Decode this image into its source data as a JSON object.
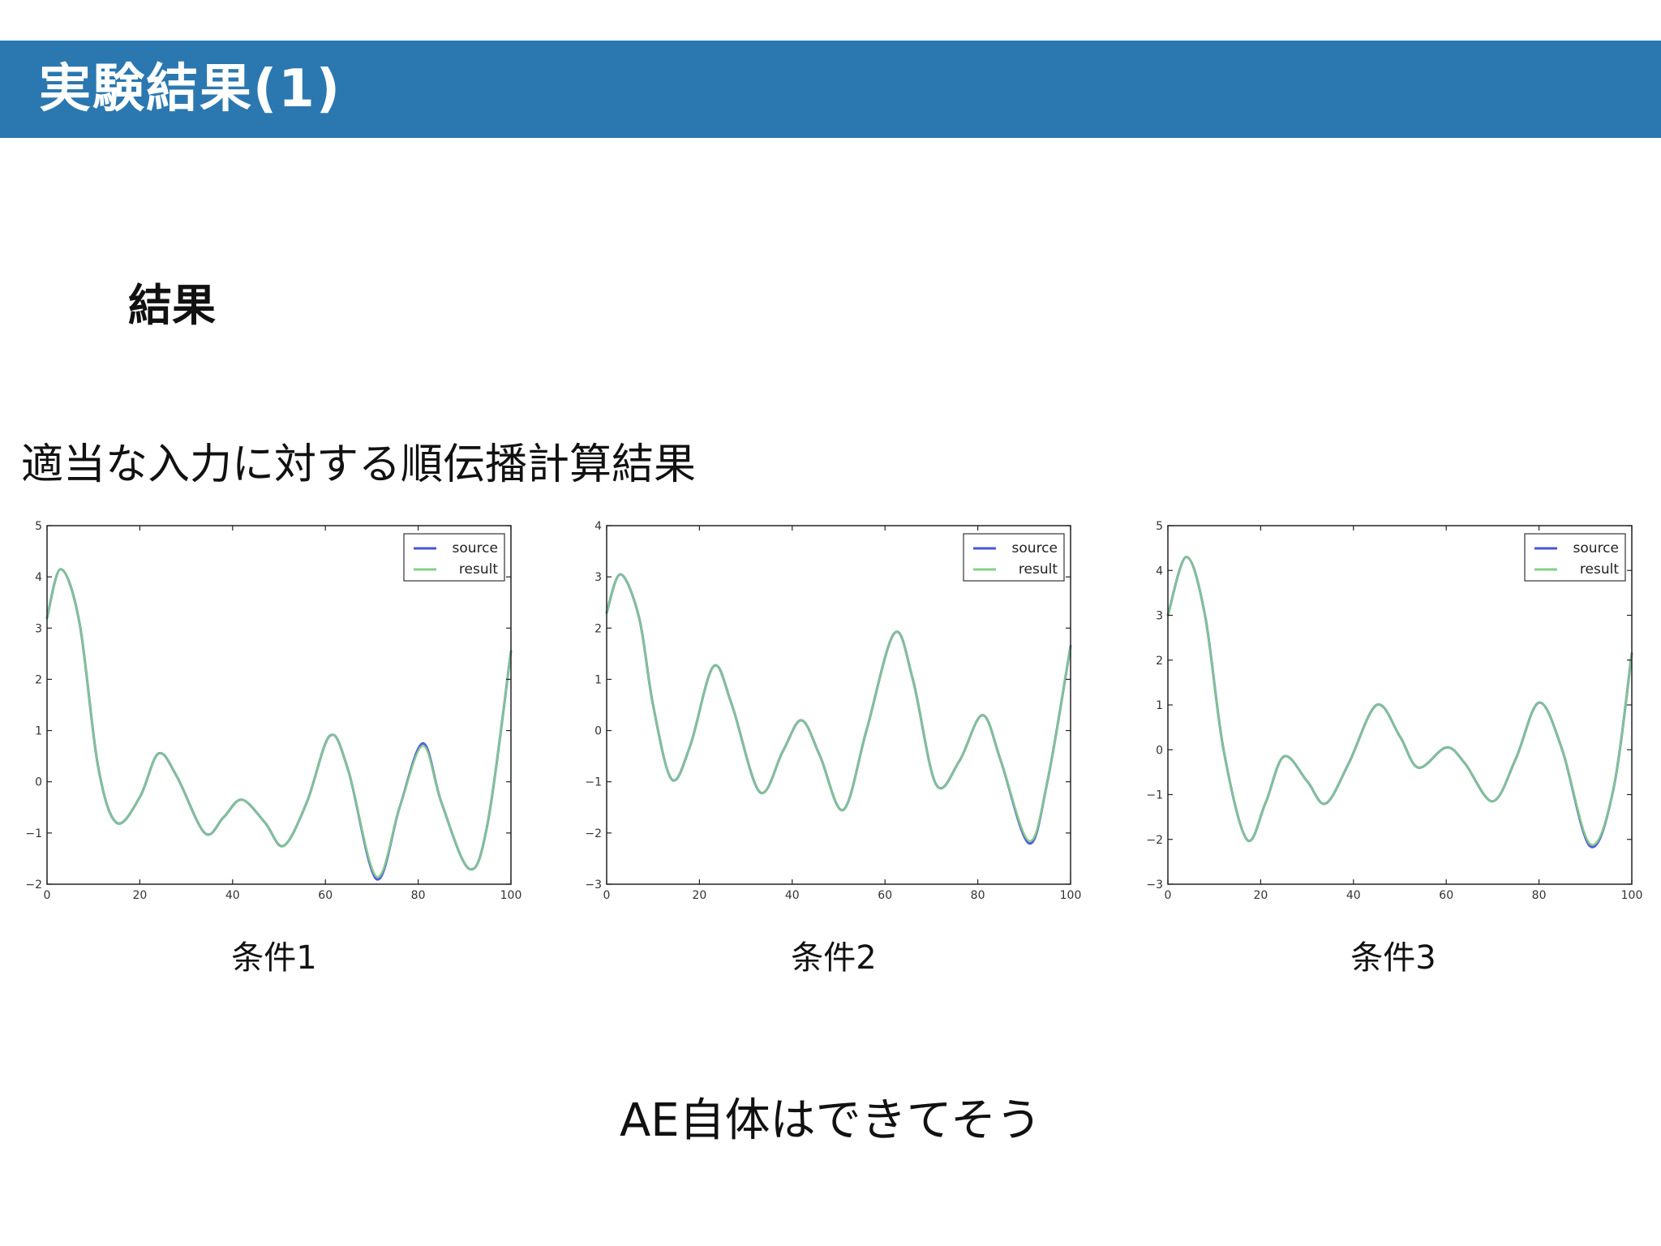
{
  "header": {
    "title": "実験結果(1)",
    "color": "#2b78b0"
  },
  "section_title": "結果",
  "description": "適当な入力に対する順伝播計算結果",
  "conclusion": "AE自体はできてそう",
  "colors": {
    "source": "#4a55d8",
    "result": "#86cf86"
  },
  "chart_data": [
    {
      "type": "line",
      "caption": "条件1",
      "xlim": [
        0,
        100
      ],
      "ylim": [
        -2,
        5
      ],
      "xticks": [
        0,
        20,
        40,
        60,
        80,
        100
      ],
      "yticks": [
        -2,
        -1,
        0,
        1,
        2,
        3,
        4,
        5
      ],
      "legend_position": "top-right",
      "x": [
        0,
        3,
        7,
        11,
        15,
        20,
        24,
        28,
        34,
        38,
        42,
        47,
        51,
        56,
        61,
        65,
        71,
        76,
        81,
        85,
        91,
        95,
        100
      ],
      "series": [
        {
          "name": "source",
          "values": [
            3.2,
            4.15,
            3.1,
            0.3,
            -0.8,
            -0.3,
            0.55,
            0.1,
            -1.0,
            -0.7,
            -0.35,
            -0.8,
            -1.25,
            -0.4,
            0.9,
            0.2,
            -1.9,
            -0.5,
            0.75,
            -0.4,
            -1.7,
            -0.8,
            2.55
          ]
        },
        {
          "name": "result",
          "values": [
            3.2,
            4.15,
            3.1,
            0.3,
            -0.8,
            -0.3,
            0.55,
            0.1,
            -1.0,
            -0.7,
            -0.35,
            -0.8,
            -1.25,
            -0.4,
            0.9,
            0.2,
            -1.85,
            -0.5,
            0.7,
            -0.4,
            -1.7,
            -0.8,
            2.55
          ]
        }
      ]
    },
    {
      "type": "line",
      "caption": "条件2",
      "xlim": [
        0,
        100
      ],
      "ylim": [
        -3,
        4
      ],
      "xticks": [
        0,
        20,
        40,
        60,
        80,
        100
      ],
      "yticks": [
        -3,
        -2,
        -1,
        0,
        1,
        2,
        3,
        4
      ],
      "legend_position": "top-right",
      "x": [
        0,
        3,
        7,
        10,
        14,
        18,
        23,
        27,
        33,
        38,
        42,
        46,
        51,
        56,
        62,
        66,
        71,
        76,
        81,
        85,
        91,
        95,
        100
      ],
      "series": [
        {
          "name": "source",
          "values": [
            2.3,
            3.05,
            2.2,
            0.5,
            -0.95,
            -0.3,
            1.25,
            0.5,
            -1.2,
            -0.4,
            0.2,
            -0.5,
            -1.55,
            0.0,
            1.9,
            1.0,
            -1.05,
            -0.6,
            0.3,
            -0.6,
            -2.2,
            -1.0,
            1.65
          ]
        },
        {
          "name": "result",
          "values": [
            2.3,
            3.05,
            2.2,
            0.5,
            -0.95,
            -0.3,
            1.25,
            0.5,
            -1.2,
            -0.4,
            0.2,
            -0.5,
            -1.55,
            0.0,
            1.9,
            1.0,
            -1.05,
            -0.6,
            0.3,
            -0.6,
            -2.15,
            -1.0,
            1.65
          ]
        }
      ]
    },
    {
      "type": "line",
      "caption": "条件3",
      "xlim": [
        0,
        100
      ],
      "ylim": [
        -3,
        5
      ],
      "xticks": [
        0,
        20,
        40,
        60,
        80,
        100
      ],
      "yticks": [
        -3,
        -2,
        -1,
        0,
        1,
        2,
        3,
        4,
        5
      ],
      "legend_position": "top-right",
      "x": [
        0,
        4,
        8,
        12,
        17,
        21,
        25,
        30,
        34,
        39,
        45,
        50,
        54,
        60,
        64,
        70,
        75,
        80,
        85,
        91,
        96,
        100
      ],
      "series": [
        {
          "name": "source",
          "values": [
            3.0,
            4.3,
            3.0,
            0.0,
            -2.0,
            -1.2,
            -0.15,
            -0.7,
            -1.2,
            -0.3,
            1.0,
            0.3,
            -0.4,
            0.05,
            -0.3,
            -1.15,
            -0.2,
            1.05,
            0.0,
            -2.15,
            -0.9,
            2.15
          ]
        },
        {
          "name": "result",
          "values": [
            3.0,
            4.3,
            3.0,
            0.0,
            -2.0,
            -1.2,
            -0.15,
            -0.7,
            -1.2,
            -0.3,
            1.0,
            0.3,
            -0.4,
            0.05,
            -0.3,
            -1.15,
            -0.2,
            1.05,
            0.0,
            -2.1,
            -0.9,
            2.15
          ]
        }
      ]
    }
  ]
}
